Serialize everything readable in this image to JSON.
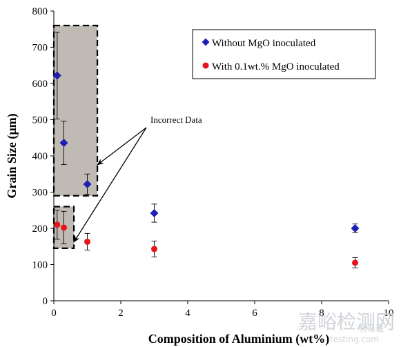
{
  "chart_data": {
    "type": "scatter",
    "xlabel": "Composition of Aluminium (wt%)",
    "ylabel": "Grain Size (µm)",
    "xlim": [
      0,
      10
    ],
    "ylim": [
      0,
      800
    ],
    "x_ticks": [
      "0",
      "2",
      "4",
      "6",
      "8",
      "10"
    ],
    "y_ticks": [
      "0",
      "100",
      "200",
      "300",
      "400",
      "500",
      "600",
      "700",
      "800"
    ],
    "grid": false,
    "legend_position": "top-right",
    "series": [
      {
        "name": "Without MgO inoculated",
        "color": "#1f1fb4",
        "marker": "diamond",
        "points": [
          {
            "x": 0.1,
            "y": 622,
            "err": 120
          },
          {
            "x": 0.3,
            "y": 436,
            "err": 60
          },
          {
            "x": 1.0,
            "y": 322,
            "err": 28
          },
          {
            "x": 3.0,
            "y": 242,
            "err": 25
          },
          {
            "x": 9.0,
            "y": 200,
            "err": 12
          }
        ]
      },
      {
        "name": "With 0.1wt.% MgO inoculated",
        "color": "#e8141c",
        "marker": "circle",
        "points": [
          {
            "x": 0.1,
            "y": 210,
            "err": 40
          },
          {
            "x": 0.3,
            "y": 202,
            "err": 45
          },
          {
            "x": 1.0,
            "y": 163,
            "err": 23
          },
          {
            "x": 3.0,
            "y": 143,
            "err": 22
          },
          {
            "x": 9.0,
            "y": 105,
            "err": 14
          }
        ]
      }
    ],
    "annotations": [
      {
        "text": "Incorrect Data",
        "highlight_x": [
          0,
          1.3
        ],
        "highlight_y": [
          290,
          760
        ]
      },
      {
        "text": "",
        "highlight_x": [
          0,
          0.6
        ],
        "highlight_y": [
          145,
          260
        ]
      }
    ]
  },
  "watermark": {
    "main": "嘉峪检测网",
    "url": "testing.com",
    "sub": "材易通"
  }
}
